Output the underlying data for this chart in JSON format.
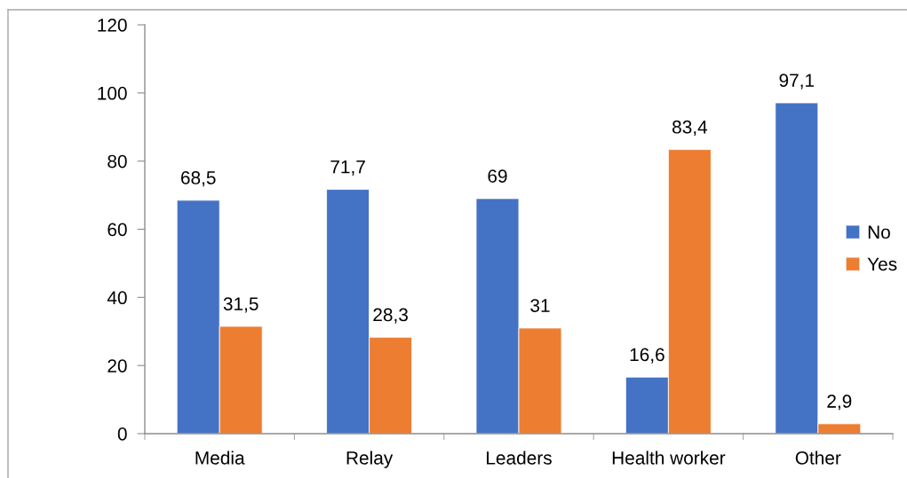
{
  "chart_data": {
    "type": "bar",
    "categories": [
      "Media",
      "Relay",
      "Leaders",
      "Health worker",
      "Other"
    ],
    "series": [
      {
        "name": "No",
        "color": "#4472c4",
        "values": [
          68.5,
          71.7,
          69,
          16.6,
          97.1
        ],
        "value_labels": [
          "68,5",
          "71,7",
          "69",
          "16,6",
          "97,1"
        ]
      },
      {
        "name": "Yes",
        "color": "#ed7d31",
        "values": [
          31.5,
          28.3,
          31,
          83.4,
          2.9
        ],
        "value_labels": [
          "31,5",
          "28,3",
          "31",
          "83,4",
          "2,9"
        ]
      }
    ],
    "ylim": [
      0,
      120
    ],
    "yticks": [
      0,
      20,
      40,
      60,
      80,
      100,
      120
    ],
    "grid": false,
    "legend": "right"
  }
}
